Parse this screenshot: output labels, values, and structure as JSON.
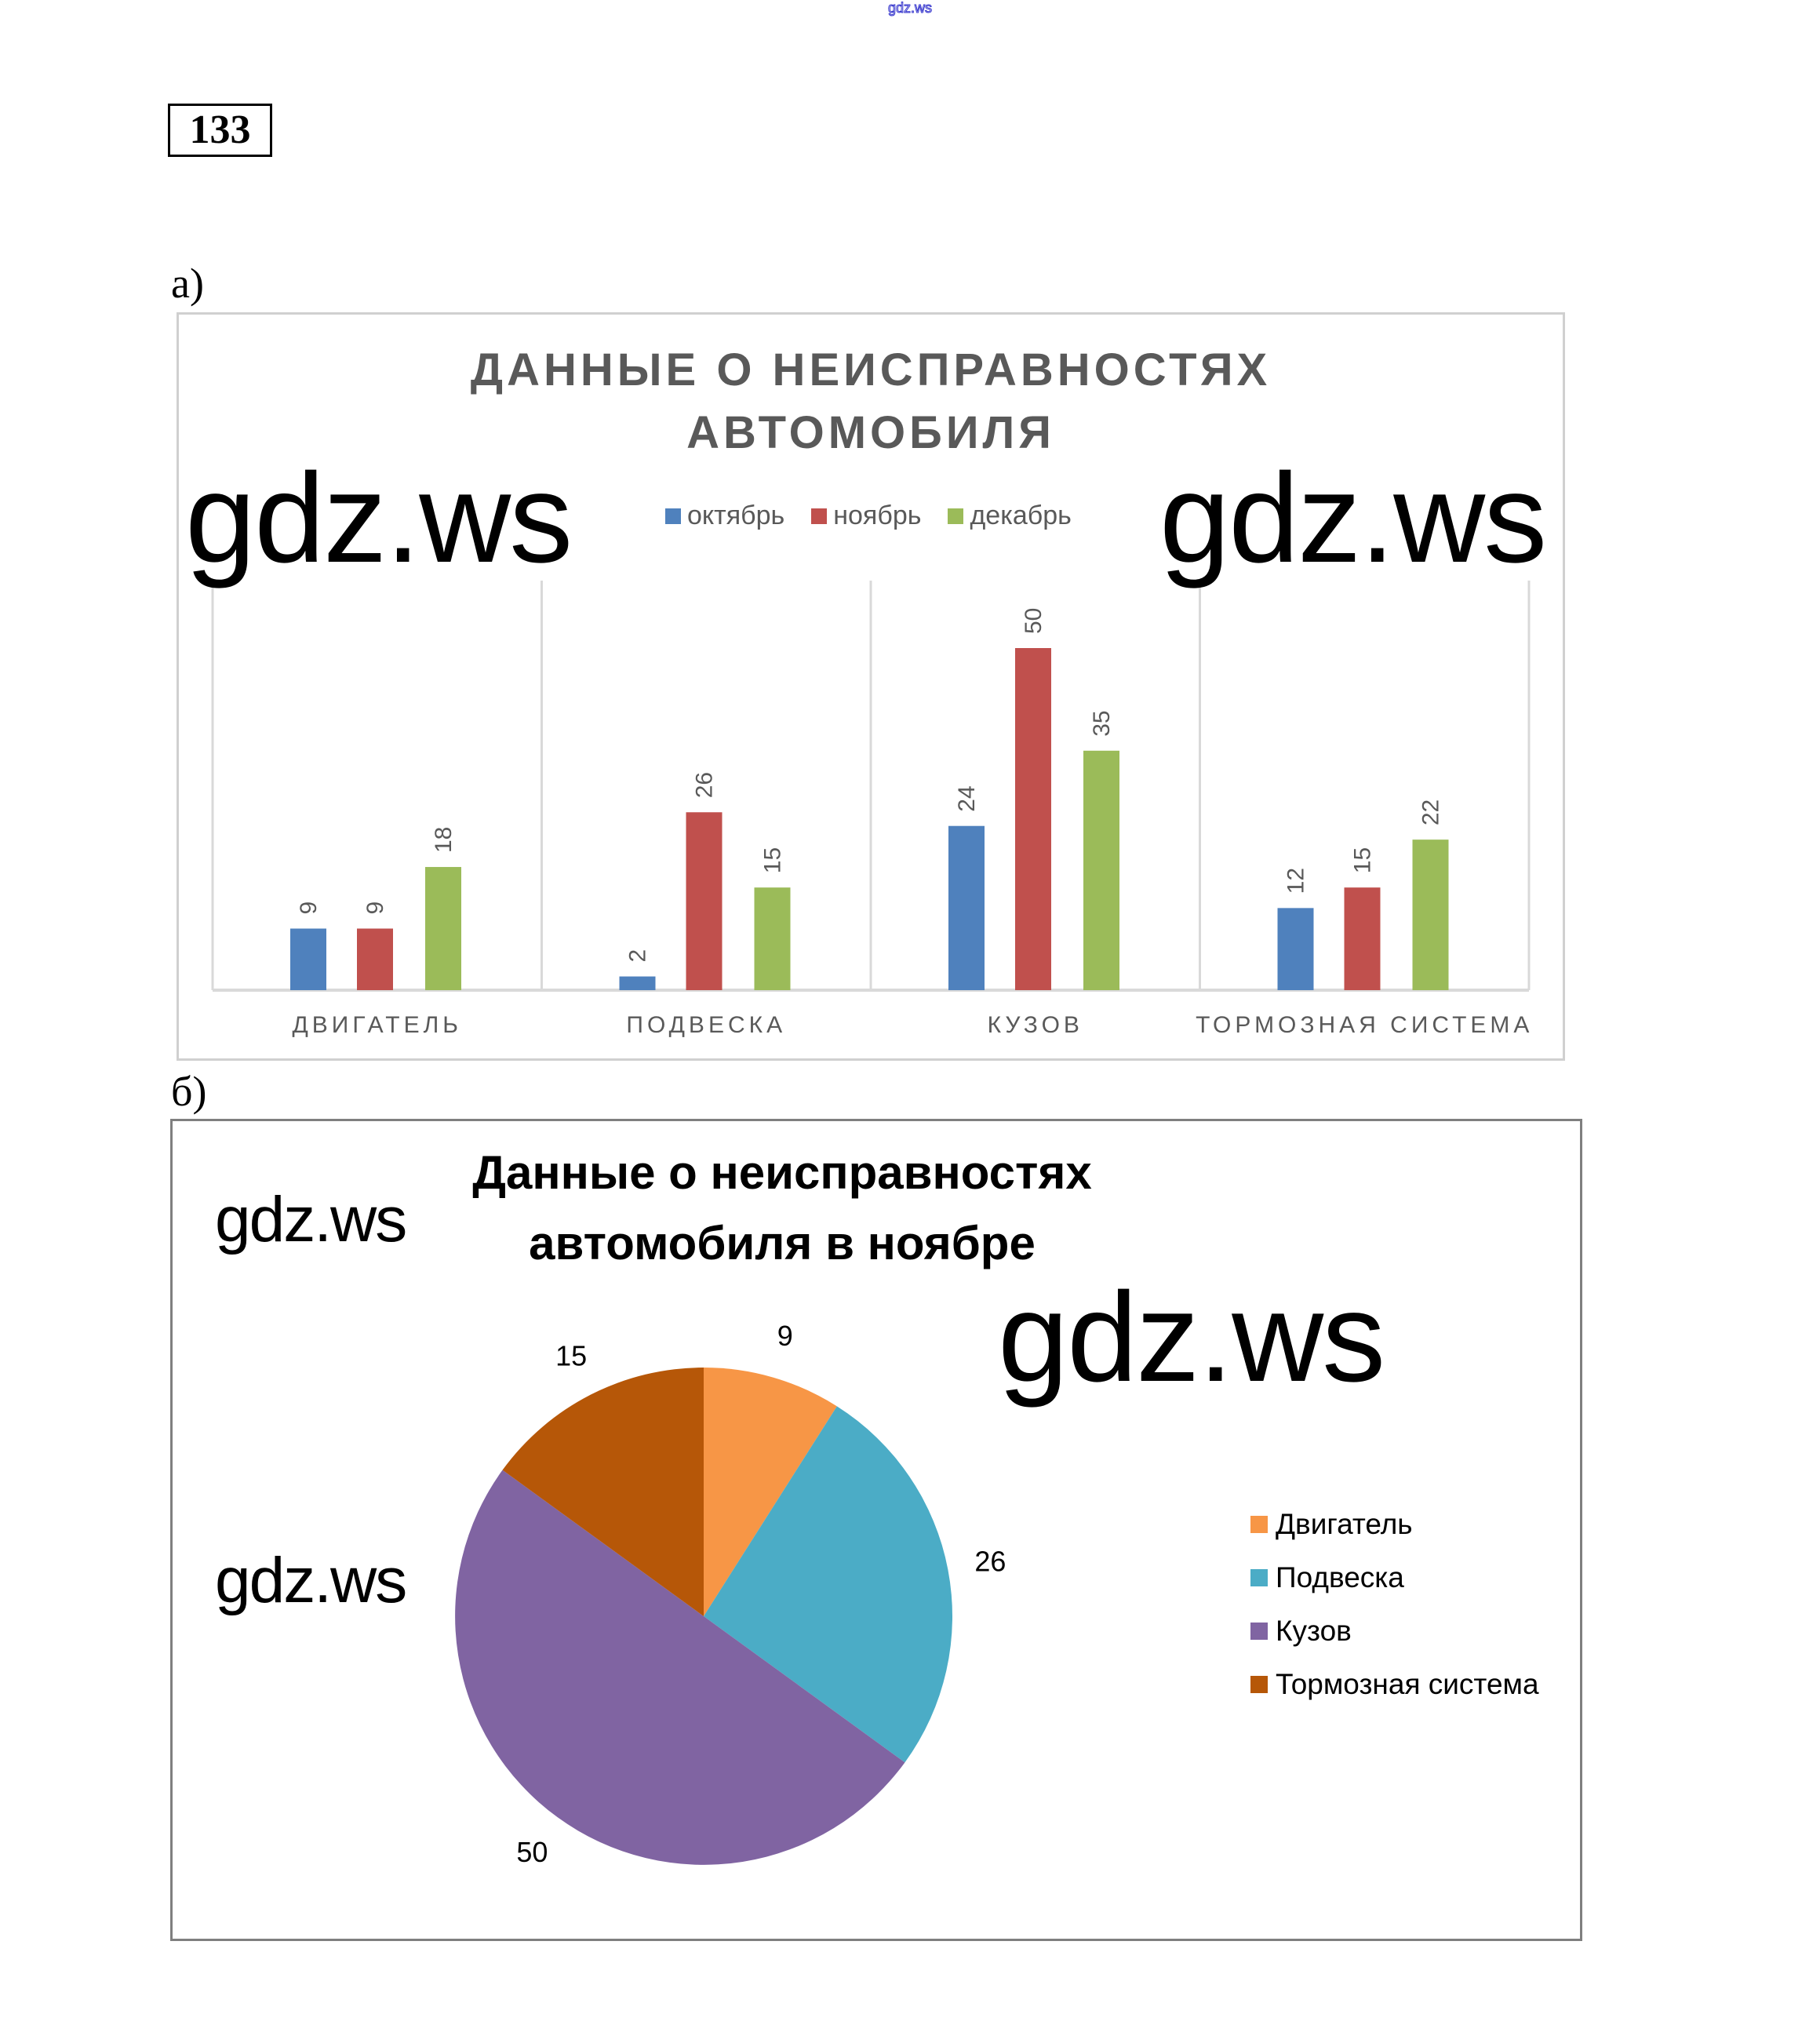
{
  "header": {
    "site_mark": "gdz.ws",
    "task_number": "133"
  },
  "watermark": "gdz.ws",
  "chart_data": [
    {
      "part_label": "а)",
      "type": "bar",
      "title_lines": [
        "ДАННЫЕ О НЕИСПРАВНОСТЯХ",
        "АВТОМОБИЛЯ"
      ],
      "categories": [
        "ДВИГАТЕЛЬ",
        "ПОДВЕСКА",
        "КУЗОВ",
        "ТОРМОЗНАЯ СИСТЕМА"
      ],
      "series": [
        {
          "name": "октябрь",
          "color": "#4F81BD",
          "values": [
            9,
            2,
            24,
            12
          ]
        },
        {
          "name": "ноябрь",
          "color": "#C0504D",
          "values": [
            9,
            26,
            50,
            15
          ]
        },
        {
          "name": "декабрь",
          "color": "#9BBB59",
          "values": [
            18,
            15,
            35,
            22
          ]
        }
      ],
      "ylim": [
        0,
        50
      ],
      "legend_position": "top",
      "data_labels": "rotated"
    },
    {
      "part_label": "б)",
      "type": "pie",
      "title_lines": [
        "Данные о неисправностях",
        "автомобиля в ноябре"
      ],
      "slices": [
        {
          "label": "Двигатель",
          "value": 9,
          "color": "#F79646"
        },
        {
          "label": "Подвеска",
          "value": 26,
          "color": "#4BACC6"
        },
        {
          "label": "Кузов",
          "value": 50,
          "color": "#8064A2"
        },
        {
          "label": "Тормозная система",
          "value": 15,
          "color": "#B65708"
        }
      ],
      "legend_position": "right"
    }
  ]
}
